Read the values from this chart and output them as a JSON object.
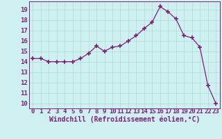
{
  "x": [
    0,
    1,
    2,
    3,
    4,
    5,
    6,
    7,
    8,
    9,
    10,
    11,
    12,
    13,
    14,
    15,
    16,
    17,
    18,
    19,
    20,
    21,
    22,
    23
  ],
  "y": [
    14.3,
    14.3,
    14.0,
    14.0,
    14.0,
    14.0,
    14.3,
    14.8,
    15.5,
    15.0,
    15.4,
    15.5,
    16.0,
    16.5,
    17.2,
    17.8,
    19.3,
    18.8,
    18.1,
    16.5,
    16.3,
    15.4,
    11.7,
    10.0
  ],
  "line_color": "#7b1f7b",
  "marker": "+",
  "marker_size": 4,
  "marker_linewidth": 1.2,
  "bg_color": "#cff0f0",
  "grid_color": "#b0d8d8",
  "xlabel": "Windchill (Refroidissement éolien,°C)",
  "xlabel_fontsize": 7,
  "tick_fontsize": 6.5,
  "ylim": [
    9.5,
    19.8
  ],
  "xlim": [
    -0.5,
    23.5
  ],
  "yticks": [
    10,
    11,
    12,
    13,
    14,
    15,
    16,
    17,
    18,
    19
  ],
  "xticks": [
    0,
    1,
    2,
    3,
    4,
    5,
    6,
    7,
    8,
    9,
    10,
    11,
    12,
    13,
    14,
    15,
    16,
    17,
    18,
    19,
    20,
    21,
    22,
    23
  ]
}
